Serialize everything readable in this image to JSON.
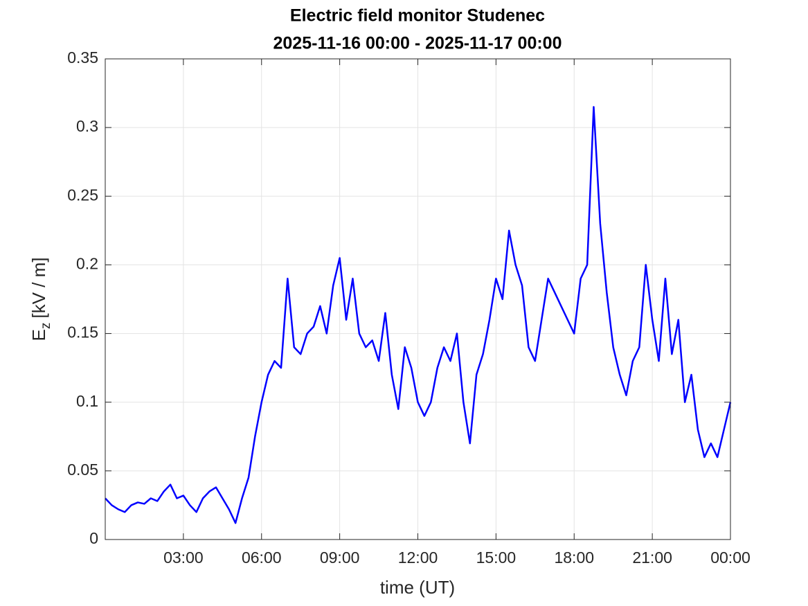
{
  "chart_data": {
    "type": "line",
    "title": [
      "Electric field monitor Studenec",
      "2025-11-16 00:00 - 2025-11-17 00:00"
    ],
    "xlabel": "time (UT)",
    "ylabel": [
      "E",
      "z",
      "[kV / m]"
    ],
    "color": "#0000ff",
    "grid": true,
    "xlim": [
      0,
      24
    ],
    "xticks": [
      {
        "value": 3,
        "label": "03:00"
      },
      {
        "value": 6,
        "label": "06:00"
      },
      {
        "value": 9,
        "label": "09:00"
      },
      {
        "value": 12,
        "label": "12:00"
      },
      {
        "value": 15,
        "label": "15:00"
      },
      {
        "value": 18,
        "label": "18:00"
      },
      {
        "value": 21,
        "label": "21:00"
      },
      {
        "value": 24,
        "label": "00:00"
      }
    ],
    "ylim": [
      0,
      0.35
    ],
    "yticks": [
      0,
      0.05,
      0.1,
      0.15,
      0.2,
      0.25,
      0.3,
      0.35
    ],
    "x": [
      0,
      0.25,
      0.5,
      0.75,
      1,
      1.25,
      1.5,
      1.75,
      2,
      2.25,
      2.5,
      2.75,
      3,
      3.25,
      3.5,
      3.75,
      4,
      4.25,
      4.5,
      4.75,
      5,
      5.25,
      5.5,
      5.75,
      6,
      6.25,
      6.5,
      6.75,
      7,
      7.25,
      7.5,
      7.75,
      8,
      8.25,
      8.5,
      8.75,
      9,
      9.25,
      9.5,
      9.75,
      10,
      10.25,
      10.5,
      10.75,
      11,
      11.25,
      11.5,
      11.75,
      12,
      12.25,
      12.5,
      12.75,
      13,
      13.25,
      13.5,
      13.75,
      14,
      14.25,
      14.5,
      14.75,
      15,
      15.25,
      15.5,
      15.75,
      16,
      16.25,
      16.5,
      16.75,
      17,
      17.25,
      17.5,
      17.75,
      18,
      18.25,
      18.5,
      18.75,
      19,
      19.25,
      19.5,
      19.75,
      20,
      20.25,
      20.5,
      20.75,
      21,
      21.25,
      21.5,
      21.75,
      22,
      22.25,
      22.5,
      22.75,
      23,
      23.25,
      23.5,
      23.75,
      24
    ],
    "values": [
      0.03,
      0.025,
      0.022,
      0.02,
      0.025,
      0.027,
      0.026,
      0.03,
      0.028,
      0.035,
      0.04,
      0.03,
      0.032,
      0.025,
      0.02,
      0.03,
      0.035,
      0.038,
      0.03,
      0.022,
      0.012,
      0.03,
      0.045,
      0.075,
      0.1,
      0.12,
      0.13,
      0.125,
      0.19,
      0.14,
      0.135,
      0.15,
      0.155,
      0.17,
      0.15,
      0.185,
      0.205,
      0.16,
      0.19,
      0.15,
      0.14,
      0.145,
      0.13,
      0.165,
      0.12,
      0.095,
      0.14,
      0.125,
      0.1,
      0.09,
      0.1,
      0.125,
      0.14,
      0.13,
      0.15,
      0.1,
      0.07,
      0.12,
      0.135,
      0.16,
      0.19,
      0.175,
      0.225,
      0.2,
      0.185,
      0.14,
      0.13,
      0.16,
      0.19,
      0.18,
      0.17,
      0.16,
      0.15,
      0.19,
      0.2,
      0.315,
      0.23,
      0.18,
      0.14,
      0.12,
      0.105,
      0.13,
      0.14,
      0.2,
      0.16,
      0.13,
      0.19,
      0.135,
      0.16,
      0.1,
      0.12,
      0.08,
      0.06,
      0.07,
      0.06,
      0.08,
      0.1
    ]
  }
}
